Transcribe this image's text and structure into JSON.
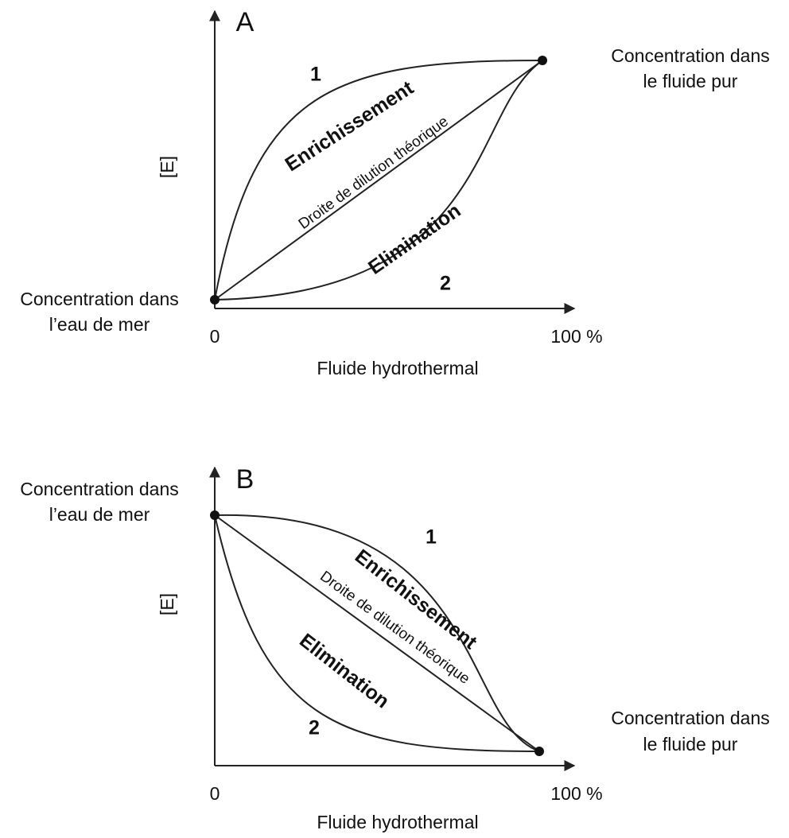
{
  "panels": [
    {
      "label": "A",
      "y_axis_label": "[E]",
      "x_axis_label": "Fluide hydrothermal",
      "x_start": "0",
      "x_end": "100 %",
      "left_note": [
        "Concentration dans",
        "l’eau de mer"
      ],
      "right_note": [
        "Concentration dans",
        "le fluide pur"
      ],
      "curve_1_label": "1",
      "curve_2_label": "2",
      "enrichment": "Enrichissement",
      "dilution": "Droite de dilution théorique",
      "elimination": "Elimination"
    },
    {
      "label": "B",
      "y_axis_label": "[E]",
      "x_axis_label": "Fluide hydrothermal",
      "x_start": "0",
      "x_end": "100 %",
      "left_note": [
        "Concentration dans",
        "l’eau de mer"
      ],
      "right_note": [
        "Concentration dans",
        "le fluide pur"
      ],
      "curve_1_label": "1",
      "curve_2_label": "2",
      "enrichment": "Enrichissement",
      "dilution": "Droite de dilution théorique",
      "elimination": "Elimination"
    }
  ]
}
